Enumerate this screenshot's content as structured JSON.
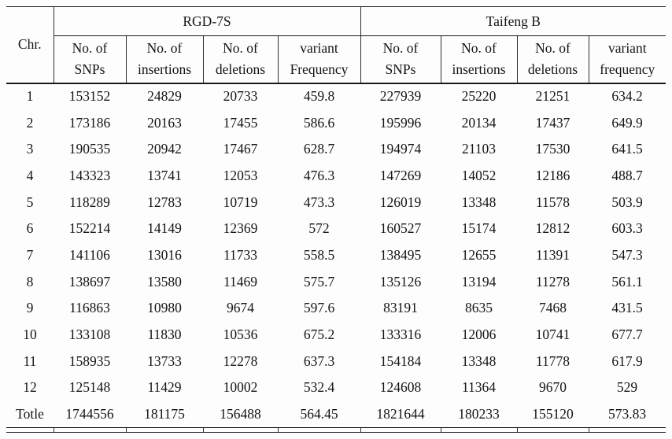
{
  "table": {
    "corner_label": "Chr.",
    "groups": [
      "RGD-7S",
      "Taifeng B"
    ],
    "columns": [
      "No. of\nSNPs",
      "No. of\ninsertions",
      "No. of\ndeletions",
      "variant\nFrequency",
      "No. of\nSNPs",
      "No. of\ninsertions",
      "No. of\ndeletions",
      "variant\nfrequency"
    ],
    "rows": [
      {
        "chr": "1",
        "values": [
          "153152",
          "24829",
          "20733",
          "459.8",
          "227939",
          "25220",
          "21251",
          "634.2"
        ]
      },
      {
        "chr": "2",
        "values": [
          "173186",
          "20163",
          "17455",
          "586.6",
          "195996",
          "20134",
          "17437",
          "649.9"
        ]
      },
      {
        "chr": "3",
        "values": [
          "190535",
          "20942",
          "17467",
          "628.7",
          "194974",
          "21103",
          "17530",
          "641.5"
        ]
      },
      {
        "chr": "4",
        "values": [
          "143323",
          "13741",
          "12053",
          "476.3",
          "147269",
          "14052",
          "12186",
          "488.7"
        ]
      },
      {
        "chr": "5",
        "values": [
          "118289",
          "12783",
          "10719",
          "473.3",
          "126019",
          "13348",
          "11578",
          "503.9"
        ]
      },
      {
        "chr": "6",
        "values": [
          "152214",
          "14149",
          "12369",
          "572",
          "160527",
          "15174",
          "12812",
          "603.3"
        ]
      },
      {
        "chr": "7",
        "values": [
          "141106",
          "13016",
          "11733",
          "558.5",
          "138495",
          "12655",
          "11391",
          "547.3"
        ]
      },
      {
        "chr": "8",
        "values": [
          "138697",
          "13580",
          "11469",
          "575.7",
          "135126",
          "13194",
          "11278",
          "561.1"
        ]
      },
      {
        "chr": "9",
        "values": [
          "116863",
          "10980",
          "9674",
          "597.6",
          "83191",
          "8635",
          "7468",
          "431.5"
        ]
      },
      {
        "chr": "10",
        "values": [
          "133108",
          "11830",
          "10536",
          "675.2",
          "133316",
          "12006",
          "10741",
          "677.7"
        ]
      },
      {
        "chr": "11",
        "values": [
          "158935",
          "13733",
          "12278",
          "637.3",
          "154184",
          "13348",
          "11778",
          "617.9"
        ]
      },
      {
        "chr": "12",
        "values": [
          "125148",
          "11429",
          "10002",
          "532.4",
          "124608",
          "11364",
          "9670",
          "529"
        ]
      },
      {
        "chr": "Totle",
        "values": [
          "1744556",
          "181175",
          "156488",
          "564.45",
          "1821644",
          "180233",
          "155120",
          "573.83"
        ]
      }
    ]
  }
}
